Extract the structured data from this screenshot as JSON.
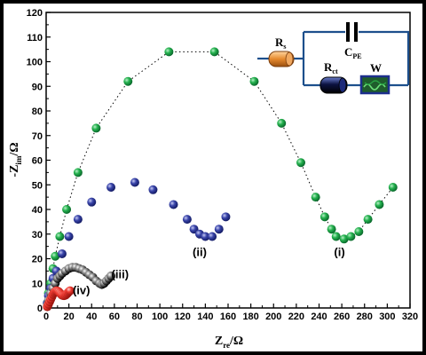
{
  "chart_data": {
    "type": "scatter",
    "xlabel_main": "Z",
    "xlabel_sub": "re",
    "xlabel_unit": "/Ω",
    "ylabel_main": "-Z",
    "ylabel_sub": "im",
    "ylabel_unit": "/Ω",
    "xlim": [
      0,
      320
    ],
    "ylim": [
      0,
      120
    ],
    "xticks": [
      "0",
      "20",
      "40",
      "60",
      "80",
      "100",
      "120",
      "140",
      "160",
      "180",
      "200",
      "220",
      "240",
      "260",
      "280",
      "300",
      "320"
    ],
    "yticks": [
      "0",
      "10",
      "20",
      "30",
      "40",
      "50",
      "60",
      "70",
      "80",
      "90",
      "100",
      "110",
      "120"
    ],
    "series": [
      {
        "name": "(i)",
        "color": "#1aa04a",
        "x": [
          1,
          2,
          4,
          6,
          8,
          12,
          18,
          28,
          44,
          72,
          108,
          148,
          183,
          207,
          224,
          237,
          245,
          251,
          255,
          262,
          268,
          275,
          283,
          293,
          305
        ],
        "y": [
          2,
          6,
          10,
          16,
          21,
          29,
          40,
          55,
          73,
          92,
          104,
          104,
          92,
          75,
          59,
          45,
          37,
          32,
          29,
          28,
          29,
          31,
          36,
          42,
          49
        ]
      },
      {
        "name": "(ii)",
        "color": "#333e9e",
        "x": [
          1,
          2,
          4,
          6,
          9,
          14,
          20,
          28,
          40,
          57,
          78,
          94,
          112,
          124,
          130,
          135,
          140,
          146,
          152,
          158
        ],
        "y": [
          2,
          5,
          8,
          12,
          15,
          22,
          29,
          36,
          43,
          49,
          51,
          48,
          42,
          36,
          32,
          30,
          29,
          29,
          32,
          37
        ]
      },
      {
        "name": "(iii)",
        "color": "#111111",
        "x": [
          1,
          2,
          4,
          6,
          8,
          10,
          12,
          14,
          17,
          20,
          23,
          26,
          29,
          32,
          35,
          38,
          41,
          44,
          47,
          49,
          51,
          53,
          55,
          57
        ],
        "y": [
          1,
          3,
          6,
          8,
          10,
          12,
          13,
          14,
          15,
          16,
          16.5,
          16.5,
          16,
          15.5,
          14.5,
          13.5,
          12.5,
          11,
          10,
          9.5,
          10,
          11,
          12,
          13
        ]
      },
      {
        "name": "(iv)",
        "color": "#e8413c",
        "x": [
          1,
          2,
          3,
          4,
          5,
          6,
          7,
          8,
          9,
          10,
          11,
          12,
          13,
          14,
          15,
          16,
          17,
          18,
          19,
          20,
          21
        ],
        "y": [
          0.5,
          1.5,
          2.5,
          3.5,
          4.5,
          5.5,
          6.2,
          6.7,
          7,
          6.9,
          6.6,
          6.1,
          5.6,
          5.2,
          5,
          5,
          5.2,
          5.6,
          6.1,
          6.6,
          7
        ]
      }
    ],
    "series_labels": [
      {
        "text": "(i)",
        "x": 258,
        "y": 21
      },
      {
        "text": "(ii)",
        "x": 135,
        "y": 21
      },
      {
        "text": "(iii)",
        "x": 65,
        "y": 12
      },
      {
        "text": "(iv)",
        "x": 31,
        "y": 5.5
      }
    ]
  },
  "circuit": {
    "rs": "R",
    "rs_sub": "s",
    "cpe": "C",
    "cpe_sub": "PE",
    "rct": "R",
    "rct_sub": "ct",
    "w": "W"
  }
}
